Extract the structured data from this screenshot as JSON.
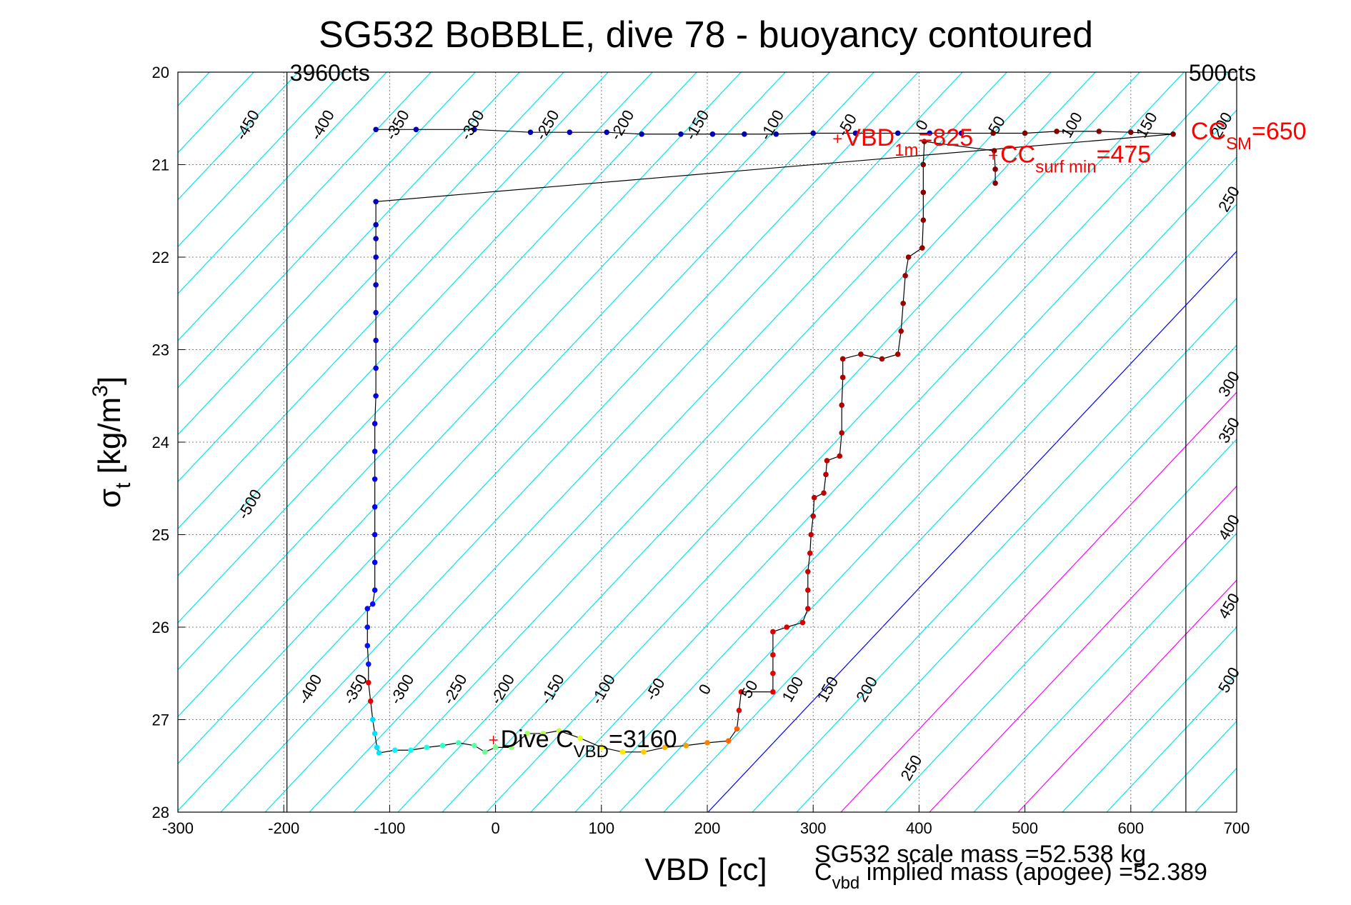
{
  "chart_data": {
    "type": "scatter",
    "title": "SG532 BoBBLE, dive 78 - buoyancy contoured",
    "xlabel": "VBD [cc]",
    "ylabel_main": "σ",
    "ylabel_sub": "t",
    "ylabel_units_prefix": " [kg/m",
    "ylabel_units_sup": "3",
    "ylabel_units_suffix": "]",
    "xlim": [
      -300,
      700
    ],
    "ylim": [
      28,
      20
    ],
    "x_ticks": [
      -300,
      -200,
      -100,
      0,
      100,
      200,
      300,
      400,
      500,
      600,
      700
    ],
    "y_ticks": [
      20,
      21,
      22,
      23,
      24,
      25,
      26,
      27,
      28
    ],
    "grid": true,
    "vertical_markers": [
      {
        "x": -197,
        "label": "3960cts"
      },
      {
        "x": 652,
        "label": "500cts"
      }
    ],
    "contour_labels_top": [
      "-450",
      "-400",
      "-350",
      "-300",
      "-250",
      "-200",
      "-150",
      "-100",
      "-50",
      "0",
      "50",
      "100",
      "150",
      "200"
    ],
    "contour_labels_right": [
      "250",
      "300",
      "350",
      "400",
      "450",
      "500"
    ],
    "contour_labels_left": [
      "-500",
      "-400",
      "-350",
      "-300",
      "-250",
      "-200",
      "-150",
      "-100",
      "-50",
      "0",
      "50",
      "100",
      "150",
      "200",
      "250"
    ],
    "annotations": {
      "vbd1m": {
        "x": 323,
        "y": 20.72,
        "text": "VBD",
        "sub": "1m",
        "suffix": "=825"
      },
      "cc_surf_min": {
        "x": 470,
        "y": 20.9,
        "text": "CC",
        "sub": "surf min",
        "suffix": "=475"
      },
      "cc_sm": {
        "x": 650,
        "y": 20.65,
        "text": "CC",
        "sub": "SM",
        "suffix": "=650"
      },
      "dive_cvbd": {
        "x": -2,
        "y": 27.22,
        "text": "Dive C",
        "sub": "VBD",
        "suffix": "=3160"
      }
    },
    "footer": {
      "scale_mass": "SG532 scale mass =52.538 kg",
      "implied_mass_prefix": "C",
      "implied_mass_sub": "vbd",
      "implied_mass_text": " implied mass (apogee) =52.389"
    },
    "series": [
      {
        "name": "",
        "color_scale": "jet",
        "points": [
          [
            -113,
            20.62
          ],
          [
            -75,
            20.62
          ],
          [
            -20,
            20.62
          ],
          [
            33,
            20.65
          ],
          [
            70,
            20.65
          ],
          [
            105,
            20.65
          ],
          [
            138,
            20.67
          ],
          [
            175,
            20.67
          ],
          [
            205,
            20.67
          ],
          [
            235,
            20.67
          ],
          [
            265,
            20.67
          ],
          [
            300,
            20.66
          ],
          [
            340,
            20.66
          ],
          [
            380,
            20.66
          ],
          [
            410,
            20.66
          ],
          [
            440,
            20.66
          ],
          [
            470,
            20.66
          ],
          [
            500,
            20.66
          ],
          [
            530,
            20.64
          ],
          [
            570,
            20.64
          ],
          [
            600,
            20.65
          ],
          [
            640,
            20.67
          ],
          [
            -113,
            21.4
          ],
          [
            -113,
            21.65
          ],
          [
            -113,
            21.8
          ],
          [
            -113,
            22.0
          ],
          [
            -113,
            22.3
          ],
          [
            -113,
            22.6
          ],
          [
            -113,
            22.9
          ],
          [
            -113,
            23.2
          ],
          [
            -113,
            23.5
          ],
          [
            -114,
            23.8
          ],
          [
            -114,
            24.1
          ],
          [
            -114,
            24.4
          ],
          [
            -114,
            24.7
          ],
          [
            -114,
            25.0
          ],
          [
            -114,
            25.3
          ],
          [
            -114,
            25.6
          ],
          [
            -116,
            25.75
          ],
          [
            -121,
            25.8
          ],
          [
            -121,
            26.0
          ],
          [
            -121,
            26.2
          ],
          [
            -120,
            26.4
          ],
          [
            -120,
            26.6
          ],
          [
            -118,
            26.8
          ],
          [
            -116,
            27.0
          ],
          [
            -114,
            27.15
          ],
          [
            -112,
            27.3
          ],
          [
            -110,
            27.36
          ],
          [
            -95,
            27.33
          ],
          [
            -80,
            27.33
          ],
          [
            -65,
            27.3
          ],
          [
            -50,
            27.28
          ],
          [
            -35,
            27.25
          ],
          [
            -20,
            27.28
          ],
          [
            -10,
            27.35
          ],
          [
            0,
            27.3
          ],
          [
            15,
            27.3
          ],
          [
            30,
            27.15
          ],
          [
            45,
            27.15
          ],
          [
            60,
            27.12
          ],
          [
            80,
            27.2
          ],
          [
            100,
            27.3
          ],
          [
            120,
            27.35
          ],
          [
            140,
            27.35
          ],
          [
            160,
            27.3
          ],
          [
            180,
            27.28
          ],
          [
            200,
            27.25
          ],
          [
            220,
            27.23
          ],
          [
            228,
            27.1
          ],
          [
            230,
            26.9
          ],
          [
            232,
            26.7
          ],
          [
            262,
            26.7
          ],
          [
            262,
            26.5
          ],
          [
            262,
            26.3
          ],
          [
            262,
            26.05
          ],
          [
            275,
            26.0
          ],
          [
            290,
            25.95
          ],
          [
            295,
            25.8
          ],
          [
            295,
            25.6
          ],
          [
            295,
            25.4
          ],
          [
            297,
            25.2
          ],
          [
            298,
            25.0
          ],
          [
            300,
            24.8
          ],
          [
            301,
            24.6
          ],
          [
            310,
            24.55
          ],
          [
            312,
            24.35
          ],
          [
            313,
            24.2
          ],
          [
            325,
            24.15
          ],
          [
            327,
            23.9
          ],
          [
            327,
            23.6
          ],
          [
            328,
            23.3
          ],
          [
            328,
            23.1
          ],
          [
            345,
            23.05
          ],
          [
            365,
            23.1
          ],
          [
            380,
            23.05
          ],
          [
            383,
            22.8
          ],
          [
            385,
            22.5
          ],
          [
            387,
            22.2
          ],
          [
            390,
            22.0
          ],
          [
            403,
            21.9
          ],
          [
            404,
            21.6
          ],
          [
            404,
            21.3
          ],
          [
            404,
            21.0
          ],
          [
            405,
            20.75
          ],
          [
            471,
            20.85
          ],
          [
            472,
            21.05
          ],
          [
            472,
            21.2
          ]
        ]
      }
    ]
  }
}
